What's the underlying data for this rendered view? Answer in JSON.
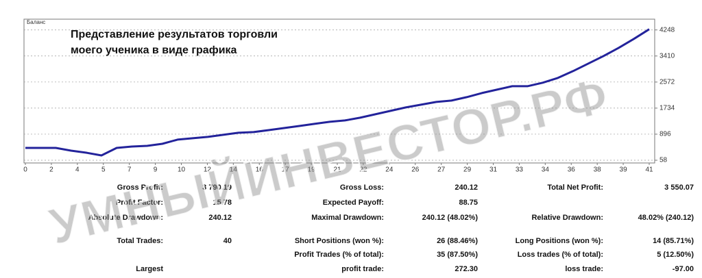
{
  "chart_data": {
    "type": "line",
    "label": "Баланс",
    "annotation_lines": [
      "Представление результатов торговли",
      "моего ученика в виде графика"
    ],
    "watermark": "УМНЫЙИНВЕСТОР.РФ",
    "x_axis_labels": [
      0,
      2,
      4,
      5,
      7,
      9,
      10,
      12,
      14,
      16,
      17,
      19,
      21,
      22,
      24,
      26,
      27,
      29,
      31,
      33,
      34,
      36,
      38,
      39,
      41
    ],
    "series": [
      {
        "color": "#23239b",
        "values": [
          455,
          455,
          455,
          367,
          300,
          212,
          455,
          499,
          521,
          587,
          720,
          764,
          808,
          874,
          940,
          962,
          1028,
          1094,
          1160,
          1227,
          1293,
          1337,
          1425,
          1535,
          1646,
          1756,
          1844,
          1932,
          1976,
          2087,
          2219,
          2329,
          2439,
          2439,
          2550,
          2704,
          2925,
          3167,
          3410,
          3674,
          3961,
          4270
        ]
      }
    ],
    "ylim": [
      -30,
      4550
    ],
    "yticks": [
      58,
      896,
      1734,
      2572,
      3410,
      4248
    ],
    "grid": true
  },
  "stats": {
    "rows": [
      [
        [
          "Gross Profit:",
          "3 790.19"
        ],
        [
          "Gross Loss:",
          "240.12"
        ],
        [
          "Total Net Profit:",
          "3 550.07"
        ]
      ],
      [
        [
          "Profit Factor:",
          "15.78"
        ],
        [
          "Expected Payoff:",
          "88.75"
        ],
        null
      ],
      [
        [
          "Absolute Drawdown:",
          "240.12"
        ],
        [
          "Maximal Drawdown:",
          "240.12 (48.02%)"
        ],
        [
          "Relative Drawdown:",
          "48.02% (240.12)"
        ]
      ],
      [
        [
          "Total Trades:",
          "40"
        ],
        [
          "Short Positions (won %):",
          "26 (88.46%)"
        ],
        [
          "Long Positions (won %):",
          "14 (85.71%)"
        ]
      ],
      [
        null,
        [
          "Profit Trades (% of total):",
          "35 (87.50%)"
        ],
        [
          "Loss trades (% of total):",
          "5 (12.50%)"
        ]
      ],
      [
        [
          "Largest",
          null
        ],
        [
          "profit trade:",
          "272.30"
        ],
        [
          "loss trade:",
          "-97.00"
        ]
      ]
    ]
  }
}
